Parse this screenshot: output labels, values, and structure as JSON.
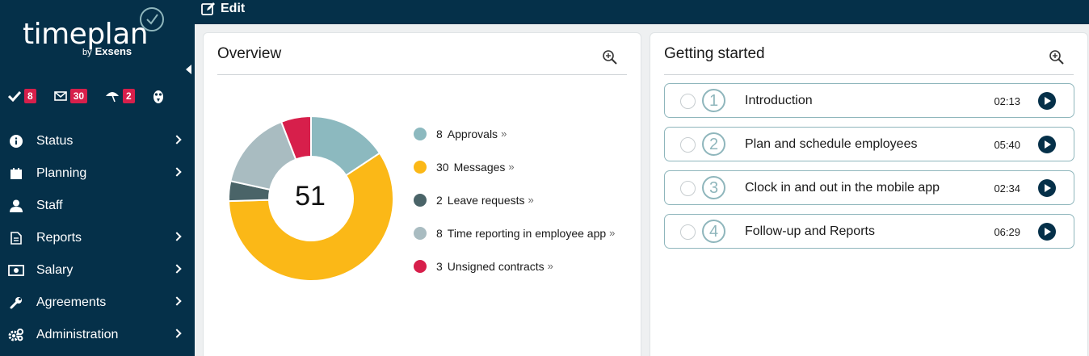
{
  "app": {
    "logo_text": "timeplan",
    "logo_by": "by",
    "logo_brand": "Exsens"
  },
  "badges": [
    {
      "icon": "check-icon",
      "count": "8"
    },
    {
      "icon": "envelope-icon",
      "count": "30"
    },
    {
      "icon": "beach-umbrella-icon",
      "count": "2"
    },
    {
      "icon": "owl-icon",
      "count": ""
    }
  ],
  "nav": {
    "items": [
      {
        "label": "Status",
        "icon": "info-icon",
        "has_submenu": true
      },
      {
        "label": "Planning",
        "icon": "calendar-icon",
        "has_submenu": true
      },
      {
        "label": "Staff",
        "icon": "user-icon",
        "has_submenu": false
      },
      {
        "label": "Reports",
        "icon": "document-icon",
        "has_submenu": true
      },
      {
        "label": "Salary",
        "icon": "money-icon",
        "has_submenu": true
      },
      {
        "label": "Agreements",
        "icon": "wrench-icon",
        "has_submenu": true
      },
      {
        "label": "Administration",
        "icon": "gears-icon",
        "has_submenu": true
      }
    ]
  },
  "toolbar": {
    "edit_label": "Edit"
  },
  "overview": {
    "title": "Overview",
    "total": "51",
    "chart_data": {
      "type": "pie",
      "categories": [
        "Approvals",
        "Messages",
        "Leave requests",
        "Time reporting in employee app",
        "Unsigned contracts"
      ],
      "values": [
        8,
        30,
        2,
        8,
        3
      ],
      "colors": [
        "#8cb9bf",
        "#fbb817",
        "#4a6468",
        "#a9bcc1",
        "#d71f4b"
      ]
    },
    "legend": [
      {
        "count": "8",
        "label": "Approvals",
        "color": "#8cb9bf"
      },
      {
        "count": "30",
        "label": "Messages",
        "color": "#fbb817"
      },
      {
        "count": "2",
        "label": "Leave requests",
        "color": "#4a6468"
      },
      {
        "count": "8",
        "label": "Time reporting in employee app",
        "color": "#a9bcc1"
      },
      {
        "count": "3",
        "label": "Unsigned contracts",
        "color": "#d71f4b"
      }
    ],
    "more_glyph": "»"
  },
  "getting_started": {
    "title": "Getting started",
    "lessons": [
      {
        "number": "1",
        "title": "Introduction",
        "duration": "02:13"
      },
      {
        "number": "2",
        "title": "Plan and schedule employees",
        "duration": "05:40"
      },
      {
        "number": "3",
        "title": "Clock in and out in the mobile app",
        "duration": "02:34"
      },
      {
        "number": "4",
        "title": "Follow-up and Reports",
        "duration": "06:29"
      }
    ]
  }
}
